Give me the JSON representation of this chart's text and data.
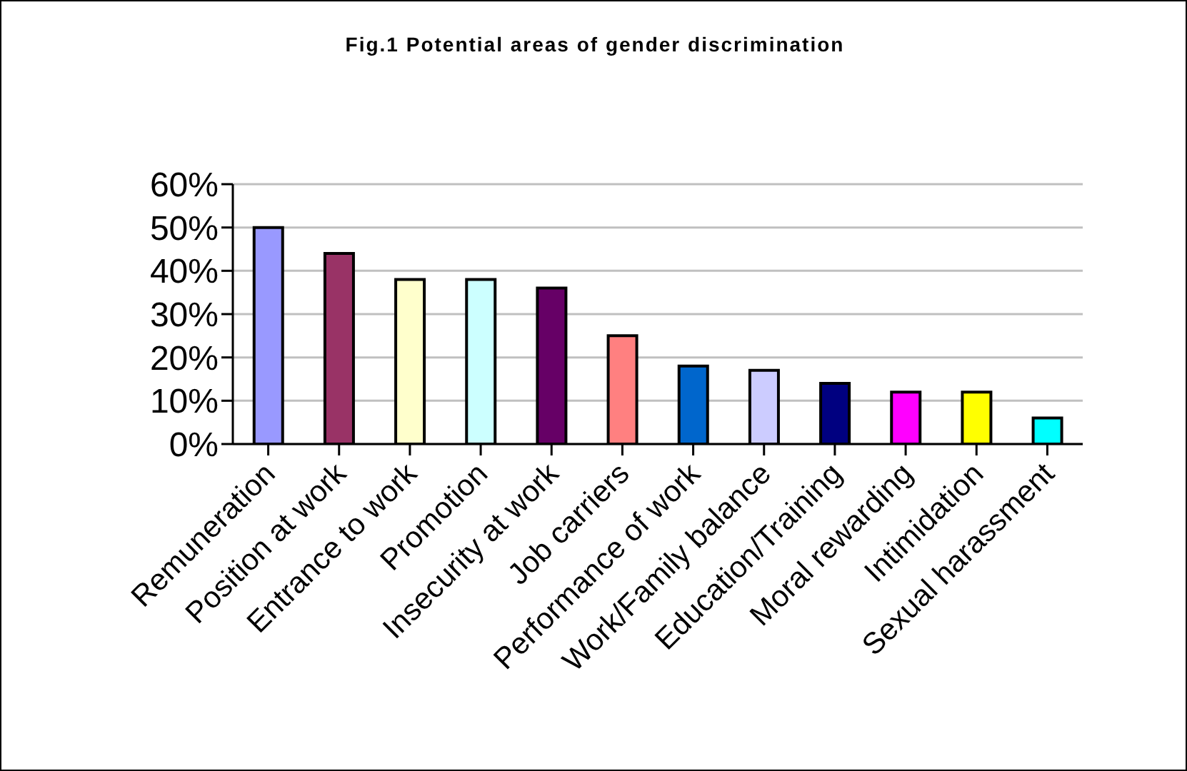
{
  "chart_data": {
    "type": "bar",
    "title": "Fig.1 Potential areas of gender discrimination",
    "categories": [
      "Remuneration",
      "Position at work",
      "Entrance to work",
      "Promotion",
      "Insecurity at work",
      "Job carriers",
      "Performance of work",
      "Work/Family balance",
      "Education/Training",
      "Moral rewarding",
      "Intimidation",
      "Sexual harassment"
    ],
    "values": [
      50,
      44,
      38,
      38,
      36,
      25,
      18,
      17,
      14,
      12,
      12,
      6
    ],
    "colors": [
      "#9999ff",
      "#993366",
      "#ffffcc",
      "#ccffff",
      "#660066",
      "#ff8080",
      "#0066cc",
      "#ccccff",
      "#000080",
      "#ff00ff",
      "#ffff00",
      "#00ffff"
    ],
    "ylim": [
      0,
      60
    ],
    "yticks": [
      {
        "value": 0,
        "label": "0%"
      },
      {
        "value": 10,
        "label": "10%"
      },
      {
        "value": 20,
        "label": "20%"
      },
      {
        "value": 30,
        "label": "30%"
      },
      {
        "value": 40,
        "label": "40%"
      },
      {
        "value": 50,
        "label": "50%"
      },
      {
        "value": 60,
        "label": "60%"
      }
    ],
    "grid": "y",
    "legend": false
  }
}
